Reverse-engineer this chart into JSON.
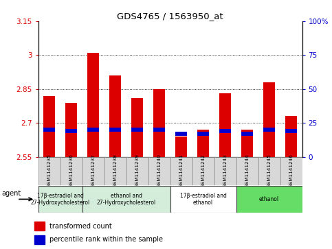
{
  "title": "GDS4765 / 1563950_at",
  "samples": [
    "GSM1141235",
    "GSM1141236",
    "GSM1141237",
    "GSM1141238",
    "GSM1141239",
    "GSM1141240",
    "GSM1141241",
    "GSM1141242",
    "GSM1141243",
    "GSM1141244",
    "GSM1141245",
    "GSM1141246"
  ],
  "transformed_count": [
    2.82,
    2.79,
    3.01,
    2.91,
    2.81,
    2.85,
    2.64,
    2.67,
    2.83,
    2.67,
    2.88,
    2.73
  ],
  "percentile_rank": [
    20,
    19,
    20,
    20,
    20,
    20,
    17,
    17,
    19,
    17,
    20,
    19
  ],
  "ylim_left": [
    2.55,
    3.15
  ],
  "ylim_right": [
    0,
    100
  ],
  "yticks_left": [
    2.55,
    2.7,
    2.85,
    3.0,
    3.15
  ],
  "yticks_right": [
    0,
    25,
    50,
    75,
    100
  ],
  "ytick_labels_left": [
    "2.55",
    "2.7",
    "2.85",
    "3",
    "3.15"
  ],
  "ytick_labels_right": [
    "0",
    "25",
    "50",
    "75",
    "100%"
  ],
  "bar_color": "#dd0000",
  "percentile_color": "#0000cc",
  "plot_bg": "#ffffff",
  "bar_width": 0.55,
  "groups": [
    {
      "label": "17β-estradiol and\n27-Hydroxycholesterol",
      "span": [
        0,
        1
      ],
      "color": "#d4edda"
    },
    {
      "label": "ethanol and\n27-Hydroxycholesterol",
      "span": [
        2,
        5
      ],
      "color": "#d4edda"
    },
    {
      "label": "17β-estradiol and\nethanol",
      "span": [
        6,
        8
      ],
      "color": "#ffffff"
    },
    {
      "label": "ethanol",
      "span": [
        9,
        11
      ],
      "color": "#66dd66"
    }
  ],
  "agent_label": "agent",
  "legend_red_label": "transformed count",
  "legend_blue_label": "percentile rank within the sample",
  "base_value": 2.55,
  "cell_color": "#d8d8d8",
  "n_samples": 12
}
